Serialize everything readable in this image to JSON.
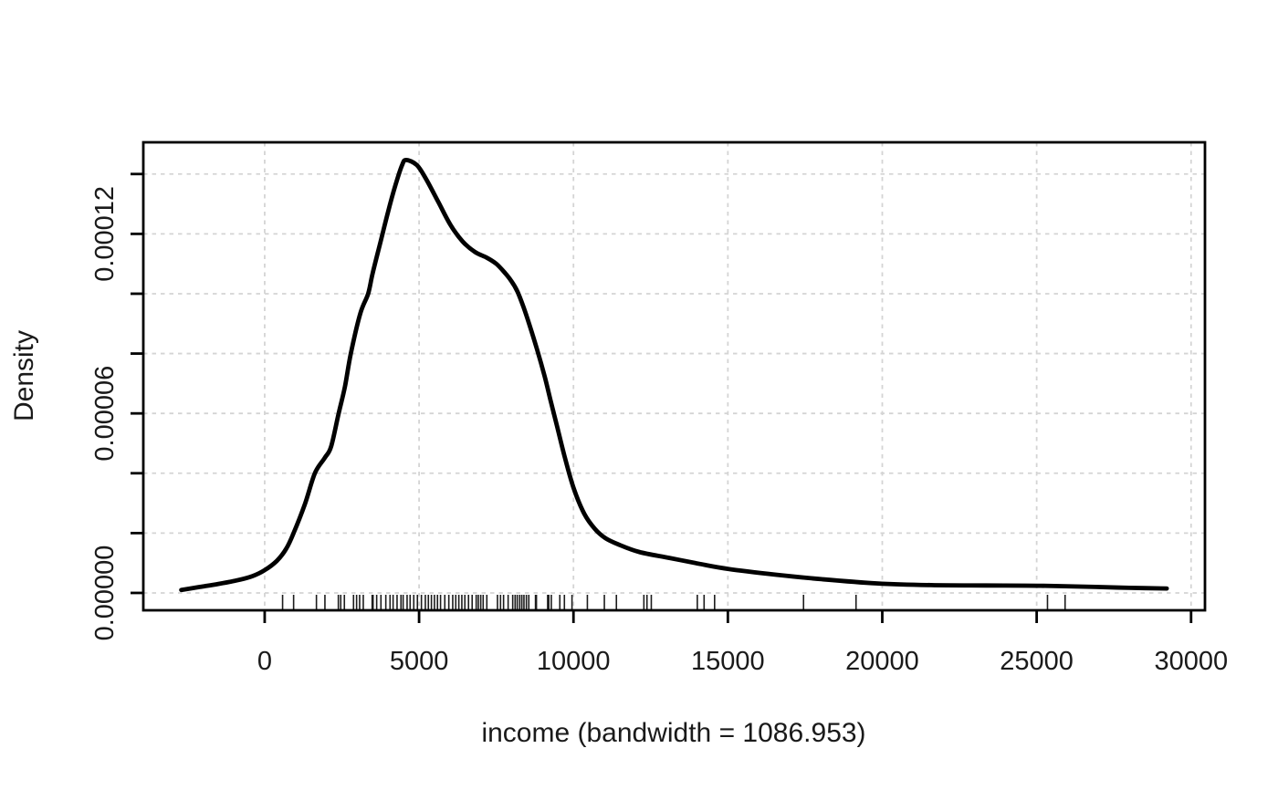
{
  "figure": {
    "background": "#ffffff"
  },
  "style": {
    "curve_color": "#000000",
    "grid_color": "#d4d4d4",
    "axis_color": "#000000",
    "text_color": "#1a1a1a",
    "rug_color": "#1c1c1c"
  },
  "chart_data": {
    "type": "line",
    "title": "",
    "xlabel": "income (bandwidth = 1086.953)",
    "ylabel": "Density",
    "bandwidth_shown": "1086.953",
    "grid": true,
    "grid_style": "dashed",
    "xlim": [
      -3930,
      30450
    ],
    "ylim": [
      -5.8e-06,
      0.0001506
    ],
    "x_ticks": [
      0,
      5000,
      10000,
      15000,
      20000,
      25000,
      30000
    ],
    "x_tick_labels": [
      "0",
      "5000",
      "10000",
      "15000",
      "20000",
      "25000",
      "30000"
    ],
    "y_ticks": [
      0,
      2e-05,
      4e-05,
      6e-05,
      8e-05,
      0.0001,
      0.00012,
      0.00014
    ],
    "y_labeled_ticks": [
      {
        "value": 0,
        "label": "0.00000"
      },
      {
        "value": 6e-05,
        "label": "0.00006"
      },
      {
        "value": 0.00012,
        "label": "0.00012"
      }
    ],
    "series": [
      {
        "name": "density",
        "x": [
          -2700,
          -2100,
          -1500,
          -900,
          -400,
          0,
          400,
          700,
          937,
          1300,
          1626,
          1951,
          2150,
          2395,
          2600,
          2789,
          3100,
          3350,
          3498,
          3745,
          3991,
          4237,
          4450,
          4582,
          4927,
          5222,
          5616,
          6011,
          6407,
          6800,
          7200,
          7500,
          7786,
          7984,
          8182,
          8377,
          8575,
          8820,
          9067,
          9264,
          9461,
          9707,
          10003,
          10349,
          10694,
          11037,
          11434,
          12122,
          13107,
          14092,
          15026,
          16557,
          18035,
          19809,
          21583,
          23357,
          25131,
          26905,
          28000,
          29211
        ],
        "y": [
          1e-06,
          2e-06,
          3e-06,
          4.2e-06,
          5.6e-06,
          7.6e-06,
          1.08e-05,
          1.48e-05,
          2e-05,
          2.96e-05,
          4e-05,
          4.52e-05,
          4.89e-05,
          6e-05,
          6.9e-05,
          8e-05,
          9.35e-05,
          0.0001,
          0.0001069,
          0.000117,
          0.0001272,
          0.0001364,
          0.000143,
          0.0001447,
          0.000143,
          0.0001384,
          0.0001308,
          0.0001231,
          0.0001175,
          0.000114,
          0.000112,
          0.00011,
          0.0001069,
          0.0001043,
          0.0001008,
          9.57e-05,
          8.96e-05,
          8.14e-05,
          7.23e-05,
          6.41e-05,
          5.6e-05,
          4.58e-05,
          3.51e-05,
          2.65e-05,
          2.14e-05,
          1.83e-05,
          1.63e-05,
          1.37e-05,
          1.17e-05,
          9.7e-06,
          8e-06,
          6.1e-06,
          4.6e-06,
          3.2e-06,
          2.6e-06,
          2.5e-06,
          2.4e-06,
          2e-06,
          1.7e-06,
          1.5e-06
        ]
      }
    ],
    "rug_x": [
      580,
      937,
      1676,
      1951,
      2386,
      2463,
      2581,
      2877,
      2977,
      3075,
      3193,
      3480,
      3510,
      3627,
      3765,
      3923,
      4060,
      4159,
      4287,
      4414,
      4484,
      4612,
      4710,
      4828,
      4946,
      5076,
      5203,
      5301,
      5400,
      5498,
      5596,
      5695,
      5833,
      5963,
      6090,
      6188,
      6287,
      6385,
      6483,
      6601,
      6719,
      6850,
      6918,
      6997,
      7076,
      7194,
      7539,
      7637,
      7736,
      7884,
      8032,
      8110,
      8179,
      8258,
      8327,
      8396,
      8475,
      8553,
      8770,
      8800,
      9164,
      9200,
      9282,
      9558,
      9706,
      9952,
      10450,
      11000,
      11390,
      12280,
      12380,
      12520,
      14010,
      14230,
      14570,
      17450,
      19150,
      25350,
      25920
    ]
  }
}
